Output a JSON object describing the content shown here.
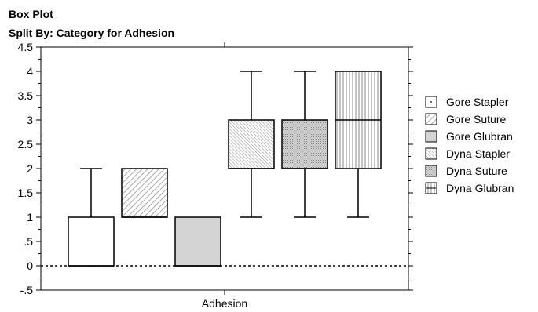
{
  "chart_data": {
    "type": "box",
    "title": "Box Plot",
    "subtitle": "Split By: Category for Adhesion",
    "xlabel": "Adhesion",
    "ylim": [
      -0.5,
      4.5
    ],
    "y_ticks": [
      -0.5,
      0,
      0.5,
      1,
      1.5,
      2,
      2.5,
      3,
      3.5,
      4,
      4.5
    ],
    "y_tick_labels": [
      "-.5",
      "0",
      ".5",
      "1",
      "1.5",
      "2",
      "2.5",
      "3",
      "3.5",
      "4",
      "4.5"
    ],
    "reference_line": {
      "y": 0,
      "style": "dotted"
    },
    "legend_position": "right",
    "series": [
      {
        "name": "Gore Stapler",
        "pattern": "none",
        "q1": 0,
        "median": 0,
        "q3": 1,
        "whisker_low": 0,
        "whisker_high": 2
      },
      {
        "name": "Gore Suture",
        "pattern": "diag-sparse",
        "q1": 1,
        "median": 1,
        "q3": 2,
        "whisker_low": 1,
        "whisker_high": 2
      },
      {
        "name": "Gore Glubran",
        "pattern": "solid-gray",
        "q1": 0,
        "median": 0,
        "q3": 1,
        "whisker_low": 0,
        "whisker_high": 1
      },
      {
        "name": "Dyna Stapler",
        "pattern": "diag-dense",
        "q1": 2,
        "median": 2,
        "q3": 3,
        "whisker_low": 1,
        "whisker_high": 4
      },
      {
        "name": "Dyna Suture",
        "pattern": "crosshatch",
        "q1": 2,
        "median": 2,
        "q3": 3,
        "whisker_low": 1,
        "whisker_high": 4
      },
      {
        "name": "Dyna Glubran",
        "pattern": "vertical",
        "q1": 2,
        "median": 3,
        "q3": 4,
        "whisker_low": 1,
        "whisker_high": 4
      }
    ]
  }
}
